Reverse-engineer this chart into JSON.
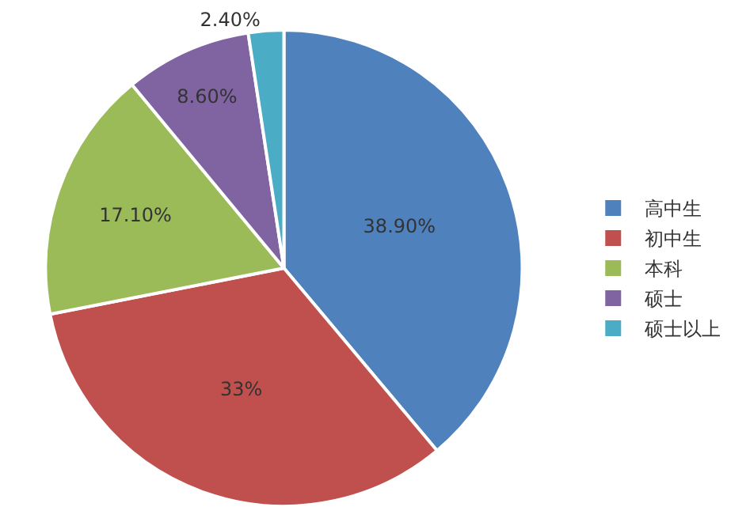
{
  "chart_data": {
    "type": "pie",
    "categories": [
      "高中生",
      "初中生",
      "本科",
      "硕士",
      "硕士以上"
    ],
    "values": [
      38.9,
      33,
      17.1,
      8.6,
      2.4
    ],
    "value_labels": [
      "38.90%",
      "33%",
      "17.10%",
      "8.60%",
      "2.40%"
    ],
    "colors": [
      "#4f81bd",
      "#c0504d",
      "#9bbb59",
      "#8064a2",
      "#4bacc6"
    ],
    "legend": "right"
  }
}
